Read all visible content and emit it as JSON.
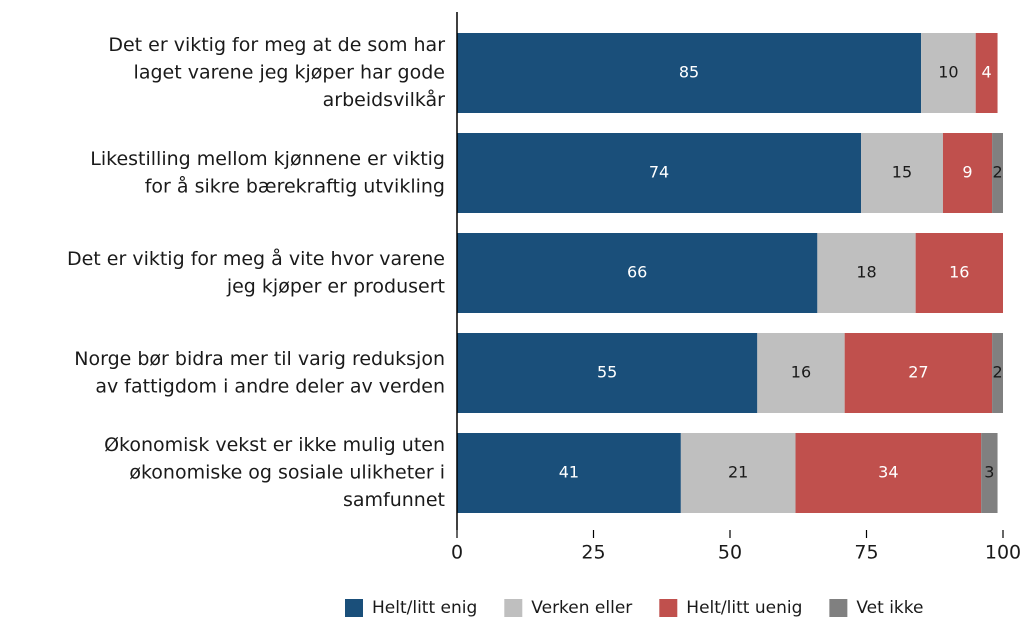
{
  "chart_data": {
    "type": "stacked-bar-horizontal",
    "categories": [
      [
        "Det er viktig for meg at de som har",
        "laget varene jeg kjøper har gode",
        "arbeidsvilkår"
      ],
      [
        "Likestilling mellom kjønnene er viktig",
        "for å sikre bærekraftig utvikling"
      ],
      [
        "Det er viktig for meg å vite hvor varene",
        "jeg kjøper er produsert"
      ],
      [
        "Norge bør bidra mer til varig reduksjon",
        "av fattigdom i andre deler av verden"
      ],
      [
        "Økonomisk vekst er ikke mulig uten",
        "økonomiske og sosiale ulikheter i",
        "samfunnet"
      ]
    ],
    "series": [
      {
        "name": "Helt/litt enig",
        "color": "#1a4f7a",
        "label_color": "#ffffff",
        "values": [
          85,
          74,
          66,
          55,
          41
        ]
      },
      {
        "name": "Verken eller",
        "color": "#bfbfbf",
        "label_color": "#1a1a1a",
        "values": [
          10,
          15,
          18,
          16,
          21
        ]
      },
      {
        "name": "Helt/litt uenig",
        "color": "#c0504d",
        "label_color": "#ffffff",
        "values": [
          4,
          9,
          16,
          27,
          34
        ]
      },
      {
        "name": "Vet ikke",
        "color": "#808080",
        "label_color": "#1a1a1a",
        "values": [
          0,
          2,
          0,
          2,
          3
        ]
      }
    ],
    "xlim": [
      0,
      100
    ],
    "xticks": [
      0,
      25,
      50,
      75,
      100
    ],
    "legend": "bottom"
  }
}
